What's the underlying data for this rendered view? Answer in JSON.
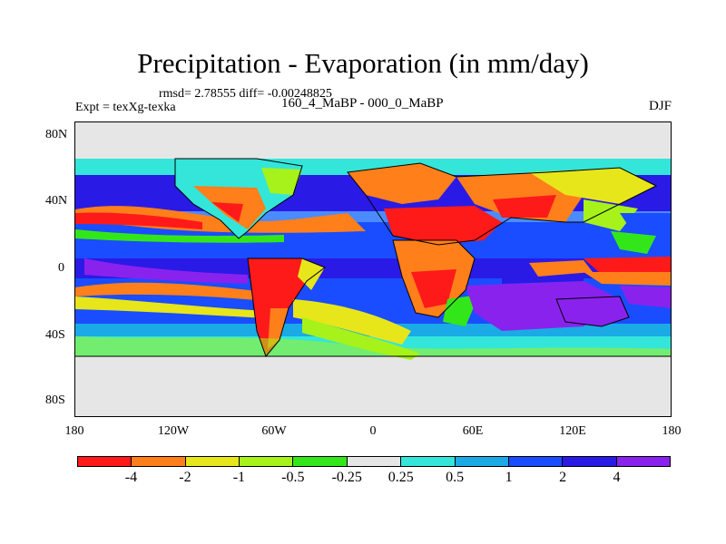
{
  "title": "Precipitation - Evaporation (in mm/day)",
  "stats": "rmsd= 2.78555 diff= -0.00248825",
  "experiment": "Expt = texXg-texka",
  "period": "160_4_MaBP - 000_0_MaBP",
  "season": "DJF",
  "map": {
    "projection": "cylindrical equidistant",
    "latitude_ticks": [
      "80N",
      "40N",
      "0",
      "40S",
      "80S"
    ],
    "longitude_ticks": [
      "180",
      "120W",
      "60W",
      "0",
      "60E",
      "120E",
      "180"
    ]
  },
  "colorbar": {
    "colors": [
      "#ff1a1a",
      "#ff7f1a",
      "#e6e61a",
      "#a6f21a",
      "#33e61a",
      "#e6e6e6",
      "#33e6d9",
      "#1aaae6",
      "#1a4dff",
      "#2a1ae6",
      "#8a22ee"
    ],
    "labels": [
      "-4",
      "-2",
      "-1",
      "-0.5",
      "-0.25",
      "0.25",
      "0.5",
      "1",
      "2",
      "4"
    ]
  }
}
